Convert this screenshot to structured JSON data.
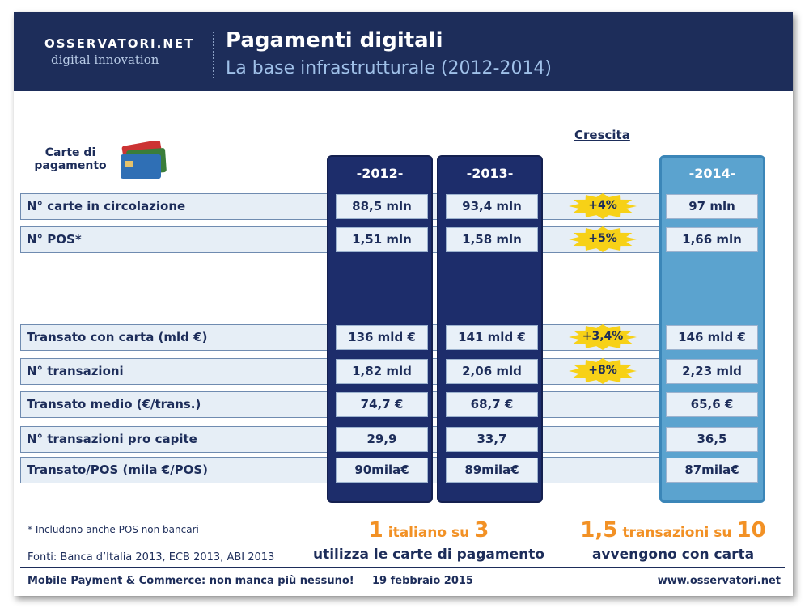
{
  "header": {
    "logo_top": "OSSERVATORI.NET",
    "logo_bottom": "digital innovation",
    "title": "Pagamenti digitali",
    "subtitle": "La base infrastrutturale (2012-2014)"
  },
  "table": {
    "icon_label": "Carte di pagamento",
    "growth_header": "Crescita",
    "columns": [
      "-2012-",
      "-2013-",
      "-2014-"
    ],
    "rows": [
      {
        "label": "N° carte in circolazione",
        "values": [
          "88,5 mln",
          "93,4 mln",
          "97 mln"
        ],
        "growth": "+4%"
      },
      {
        "label": "N° POS*",
        "values": [
          "1,51 mln",
          "1,58 mln",
          "1,66 mln"
        ],
        "growth": "+5%"
      },
      {
        "label": "Transato con carta (mld €)",
        "values": [
          "136 mld €",
          "141 mld €",
          "146 mld €"
        ],
        "growth": "+3,4%"
      },
      {
        "label": "N° transazioni",
        "values": [
          "1,82 mld",
          "2,06 mld",
          "2,23 mld"
        ],
        "growth": "+8%"
      },
      {
        "label": "Transato medio (€/trans.)",
        "values": [
          "74,7 €",
          "68,7 €",
          "65,6 €"
        ]
      },
      {
        "label": "N° transazioni pro capite",
        "values": [
          "29,9",
          "33,7",
          "36,5"
        ]
      },
      {
        "label": "Transato/POS (mila €/POS)",
        "values": [
          "90mila€",
          "89mila€",
          "87mila€"
        ]
      }
    ]
  },
  "footnote": "* Includono anche POS non bancari",
  "sources": "Fonti: Banca d’Italia 2013, ECB 2013, ABI 2013",
  "highlights": [
    {
      "big1": "1",
      "middle": "italiano su",
      "big2": "3",
      "caption": "utilizza le carte di pagamento"
    },
    {
      "big1": "1,5",
      "middle": "transazioni su",
      "big2": "10",
      "caption": "avvengono con carta"
    }
  ],
  "footer": {
    "event": "Mobile Payment & Commerce: non manca più nessuno!",
    "date": "19 febbraio 2015",
    "url": "www.osservatori.net"
  }
}
